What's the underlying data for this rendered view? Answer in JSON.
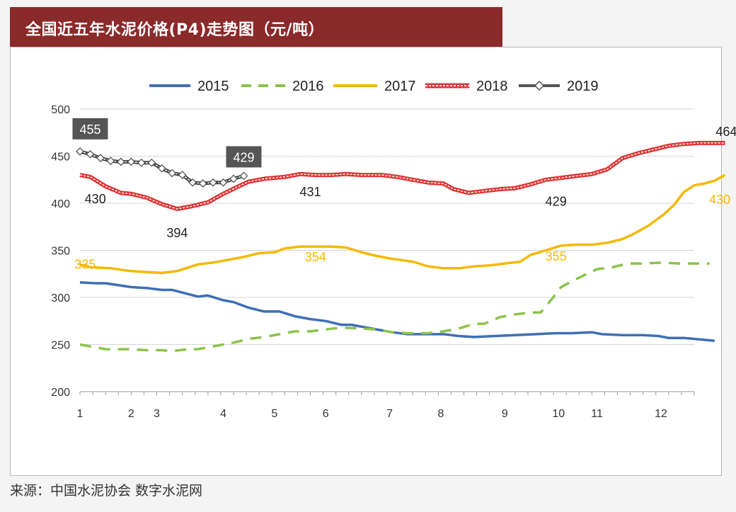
{
  "title": "全国近五年水泥价格(P4)走势图（元/吨）",
  "source": "来源：中国水泥协会  数字水泥网",
  "chart_data": {
    "type": "line",
    "ylim": [
      200,
      500
    ],
    "yticks": [
      200,
      250,
      300,
      350,
      400,
      450,
      500
    ],
    "xlim": [
      1,
      13
    ],
    "xticks": [
      {
        "label": "1",
        "x": 1.0
      },
      {
        "label": "2",
        "x": 2.0
      },
      {
        "label": "3",
        "x": 2.5
      },
      {
        "label": "4",
        "x": 3.8
      },
      {
        "label": "5",
        "x": 4.8
      },
      {
        "label": "6",
        "x": 5.8
      },
      {
        "label": "7",
        "x": 7.05
      },
      {
        "label": "8",
        "x": 8.05
      },
      {
        "label": "9",
        "x": 9.3
      },
      {
        "label": "10",
        "x": 10.35
      },
      {
        "label": "11",
        "x": 11.1
      },
      {
        "label": "12",
        "x": 12.35
      }
    ],
    "grid": true,
    "legend_position": "top",
    "series": [
      {
        "name": "2015",
        "color": "#3e6fb5",
        "dash": "solid",
        "marker": "none",
        "points": [
          [
            1.0,
            316
          ],
          [
            1.3,
            315
          ],
          [
            1.5,
            315
          ],
          [
            2.0,
            311
          ],
          [
            2.3,
            310
          ],
          [
            2.6,
            308
          ],
          [
            2.8,
            308
          ],
          [
            3.3,
            301
          ],
          [
            3.5,
            302
          ],
          [
            3.8,
            297
          ],
          [
            4.0,
            295
          ],
          [
            4.3,
            289
          ],
          [
            4.6,
            285
          ],
          [
            4.9,
            285
          ],
          [
            5.2,
            280
          ],
          [
            5.5,
            277
          ],
          [
            5.8,
            275
          ],
          [
            6.1,
            271
          ],
          [
            6.3,
            271
          ],
          [
            6.6,
            268
          ],
          [
            6.9,
            265
          ],
          [
            7.1,
            263
          ],
          [
            7.4,
            261
          ],
          [
            7.8,
            261
          ],
          [
            8.1,
            261
          ],
          [
            8.4,
            259
          ],
          [
            8.7,
            258
          ],
          [
            9.1,
            259
          ],
          [
            9.5,
            260
          ],
          [
            9.9,
            261
          ],
          [
            10.3,
            262
          ],
          [
            10.6,
            262
          ],
          [
            11.0,
            263
          ],
          [
            11.2,
            261
          ],
          [
            11.6,
            260
          ],
          [
            12.0,
            260
          ],
          [
            12.3,
            259
          ],
          [
            12.5,
            257
          ],
          [
            12.8,
            257
          ],
          [
            13.2,
            255
          ],
          [
            13.4,
            254
          ]
        ]
      },
      {
        "name": "2016",
        "color": "#8bc34a",
        "dash": "dash",
        "marker": "none",
        "points": [
          [
            1.0,
            250
          ],
          [
            1.3,
            247
          ],
          [
            1.5,
            245
          ],
          [
            2.0,
            245
          ],
          [
            2.3,
            244
          ],
          [
            2.6,
            244
          ],
          [
            2.8,
            243
          ],
          [
            3.1,
            245
          ],
          [
            3.3,
            245
          ],
          [
            3.6,
            248
          ],
          [
            4.0,
            252
          ],
          [
            4.3,
            256
          ],
          [
            4.6,
            258
          ],
          [
            4.9,
            261
          ],
          [
            5.2,
            264
          ],
          [
            5.5,
            264
          ],
          [
            5.8,
            266
          ],
          [
            6.1,
            268
          ],
          [
            6.5,
            267
          ],
          [
            6.8,
            266
          ],
          [
            7.1,
            263
          ],
          [
            7.4,
            262
          ],
          [
            7.8,
            262
          ],
          [
            8.1,
            264
          ],
          [
            8.4,
            267
          ],
          [
            8.7,
            272
          ],
          [
            8.9,
            272
          ],
          [
            9.2,
            279
          ],
          [
            9.5,
            282
          ],
          [
            9.8,
            284
          ],
          [
            10.0,
            284
          ],
          [
            10.2,
            297
          ],
          [
            10.4,
            311
          ],
          [
            10.6,
            317
          ],
          [
            10.9,
            325
          ],
          [
            11.1,
            330
          ],
          [
            11.4,
            332
          ],
          [
            11.7,
            336
          ],
          [
            12.0,
            336
          ],
          [
            12.4,
            337
          ],
          [
            12.7,
            336
          ],
          [
            13.0,
            336
          ],
          [
            13.3,
            336
          ]
        ]
      },
      {
        "name": "2017",
        "color": "#f5b800",
        "dash": "solid",
        "marker": "none",
        "points": [
          [
            1.0,
            335
          ],
          [
            1.2,
            332
          ],
          [
            1.6,
            331
          ],
          [
            2.0,
            328
          ],
          [
            2.3,
            327
          ],
          [
            2.6,
            326
          ],
          [
            2.9,
            328
          ],
          [
            3.3,
            335
          ],
          [
            3.6,
            337
          ],
          [
            3.9,
            340
          ],
          [
            4.2,
            343
          ],
          [
            4.5,
            347
          ],
          [
            4.8,
            348
          ],
          [
            5.0,
            352
          ],
          [
            5.3,
            354
          ],
          [
            5.6,
            354
          ],
          [
            5.9,
            354
          ],
          [
            6.2,
            353
          ],
          [
            6.5,
            348
          ],
          [
            6.8,
            344
          ],
          [
            7.1,
            341
          ],
          [
            7.5,
            338
          ],
          [
            7.8,
            333
          ],
          [
            8.1,
            331
          ],
          [
            8.4,
            331
          ],
          [
            8.7,
            333
          ],
          [
            9.0,
            334
          ],
          [
            9.3,
            336
          ],
          [
            9.6,
            338
          ],
          [
            9.8,
            345
          ],
          [
            10.1,
            350
          ],
          [
            10.4,
            355
          ],
          [
            10.7,
            356
          ],
          [
            11.0,
            356
          ],
          [
            11.3,
            358
          ],
          [
            11.6,
            362
          ],
          [
            11.8,
            367
          ],
          [
            12.1,
            376
          ],
          [
            12.4,
            388
          ],
          [
            12.6,
            398
          ],
          [
            12.8,
            412
          ],
          [
            13.0,
            419
          ],
          [
            13.2,
            421
          ],
          [
            13.4,
            424
          ],
          [
            13.6,
            430
          ]
        ]
      },
      {
        "name": "2018",
        "color": "#e03434",
        "dash": "solid",
        "marker": "none",
        "points": [
          [
            1.0,
            430
          ],
          [
            1.2,
            428
          ],
          [
            1.5,
            418
          ],
          [
            1.8,
            411
          ],
          [
            2.0,
            410
          ],
          [
            2.3,
            406
          ],
          [
            2.6,
            399
          ],
          [
            2.9,
            394
          ],
          [
            3.2,
            397
          ],
          [
            3.5,
            401
          ],
          [
            3.8,
            410
          ],
          [
            4.1,
            418
          ],
          [
            4.3,
            423
          ],
          [
            4.6,
            426
          ],
          [
            5.0,
            428
          ],
          [
            5.3,
            431
          ],
          [
            5.6,
            430
          ],
          [
            5.9,
            430
          ],
          [
            6.2,
            431
          ],
          [
            6.5,
            430
          ],
          [
            6.9,
            430
          ],
          [
            7.2,
            428
          ],
          [
            7.5,
            425
          ],
          [
            7.8,
            422
          ],
          [
            8.1,
            421
          ],
          [
            8.3,
            415
          ],
          [
            8.6,
            411
          ],
          [
            8.9,
            413
          ],
          [
            9.2,
            415
          ],
          [
            9.5,
            416
          ],
          [
            9.8,
            420
          ],
          [
            10.1,
            425
          ],
          [
            10.4,
            427
          ],
          [
            10.7,
            429
          ],
          [
            11.0,
            431
          ],
          [
            11.3,
            436
          ],
          [
            11.6,
            448
          ],
          [
            11.9,
            453
          ],
          [
            12.2,
            457
          ],
          [
            12.5,
            461
          ],
          [
            12.8,
            463
          ],
          [
            13.1,
            464
          ],
          [
            13.4,
            464
          ],
          [
            13.6,
            464
          ]
        ]
      },
      {
        "name": "2019",
        "color": "#555555",
        "dash": "solid",
        "marker": "diamond",
        "points": [
          [
            1.0,
            455
          ],
          [
            1.2,
            452
          ],
          [
            1.4,
            448
          ],
          [
            1.6,
            445
          ],
          [
            1.8,
            444
          ],
          [
            2.0,
            444
          ],
          [
            2.2,
            443
          ],
          [
            2.4,
            443
          ],
          [
            2.6,
            437
          ],
          [
            2.8,
            432
          ],
          [
            3.0,
            430
          ],
          [
            3.2,
            422
          ],
          [
            3.4,
            421
          ],
          [
            3.6,
            422
          ],
          [
            3.8,
            422
          ],
          [
            4.0,
            426
          ],
          [
            4.2,
            429
          ]
        ]
      }
    ],
    "data_labels": [
      {
        "text": "455",
        "x": 1.2,
        "y": 455,
        "color": "#ffffff",
        "box": "#555555",
        "dx": 0,
        "dy": -30
      },
      {
        "text": "429",
        "x": 4.2,
        "y": 429,
        "color": "#ffffff",
        "box": "#555555",
        "dx": 0,
        "dy": -25
      },
      {
        "text": "430",
        "x": 1.3,
        "y": 430,
        "color": "#222222",
        "dx": 0,
        "dy": 34
      },
      {
        "text": "394",
        "x": 2.9,
        "y": 394,
        "color": "#222222",
        "dx": 0,
        "dy": 34
      },
      {
        "text": "431",
        "x": 5.5,
        "y": 431,
        "color": "#222222",
        "dx": 0,
        "dy": 25
      },
      {
        "text": "429",
        "x": 10.3,
        "y": 429,
        "color": "#222222",
        "dx": 0,
        "dy": 36
      },
      {
        "text": "464",
        "x": 13.6,
        "y": 464,
        "color": "#222222",
        "dx": 2,
        "dy": -16
      },
      {
        "text": "335",
        "x": 1.1,
        "y": 335,
        "color": "#f5b800",
        "dx": 0,
        "dy": 0
      },
      {
        "text": "354",
        "x": 5.6,
        "y": 354,
        "color": "#f5b800",
        "dx": 0,
        "dy": 15
      },
      {
        "text": "355",
        "x": 10.3,
        "y": 355,
        "color": "#f5b800",
        "dx": 0,
        "dy": 15
      },
      {
        "text": "430",
        "x": 13.5,
        "y": 430,
        "color": "#f5b800",
        "dx": 0,
        "dy": 35
      }
    ]
  }
}
